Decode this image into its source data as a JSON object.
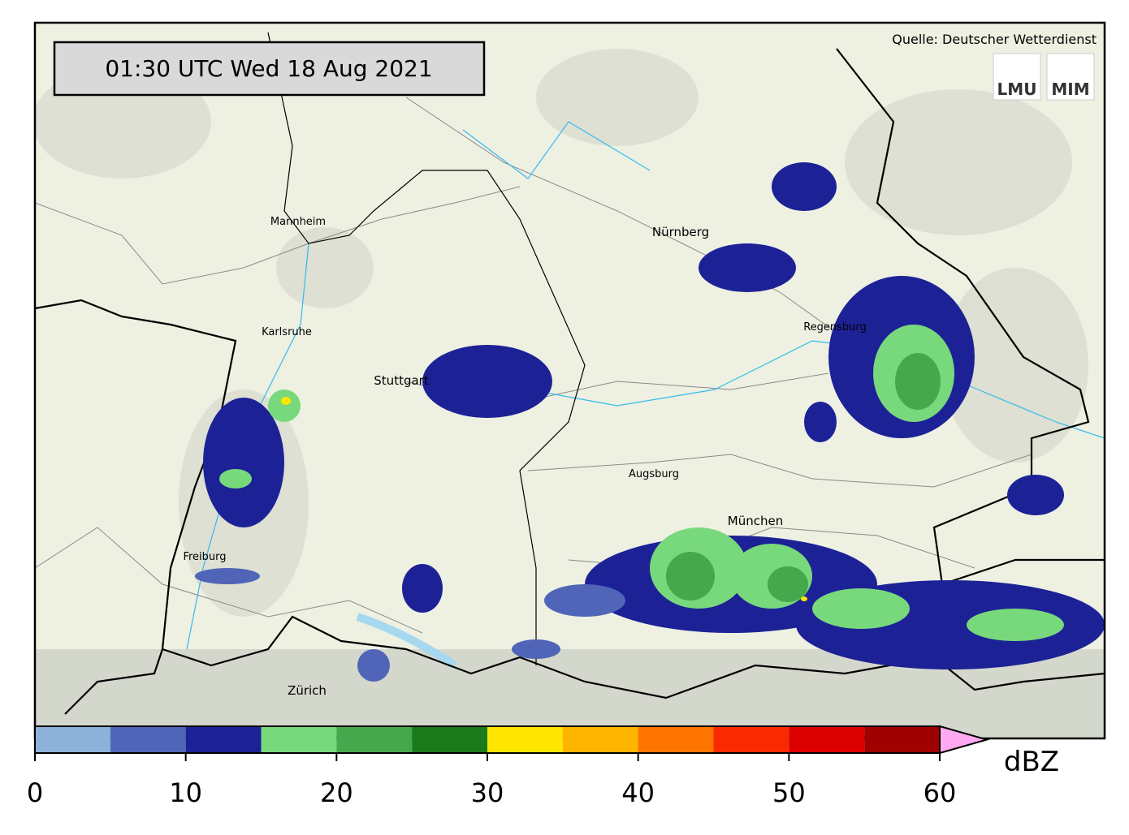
{
  "header": {
    "timestamp": "01:30 UTC  Wed 18 Aug 2021",
    "source": "Quelle: Deutscher Wetterdienst",
    "logos": [
      "LMU",
      "MIM"
    ]
  },
  "cities": [
    "Mannheim",
    "Nürnberg",
    "Karlsruhe",
    "Stuttgart",
    "Regensburg",
    "Augsburg",
    "München",
    "Freiburg",
    "Zürich"
  ],
  "colorbar": {
    "label": "dBZ",
    "bounds": [
      0,
      5,
      10,
      15,
      20,
      25,
      30,
      35,
      40,
      45,
      50,
      55,
      60
    ],
    "colors": [
      "#8db2d8",
      "#5065b8",
      "#1c2296",
      "#78d87c",
      "#46a84c",
      "#1b7a1c",
      "#ffe600",
      "#ffb400",
      "#ff7400",
      "#fa2a00",
      "#dc0000",
      "#a00000"
    ],
    "extend_color": "#ffaaf0",
    "ticks": [
      0,
      10,
      20,
      30,
      40,
      50,
      60
    ]
  }
}
